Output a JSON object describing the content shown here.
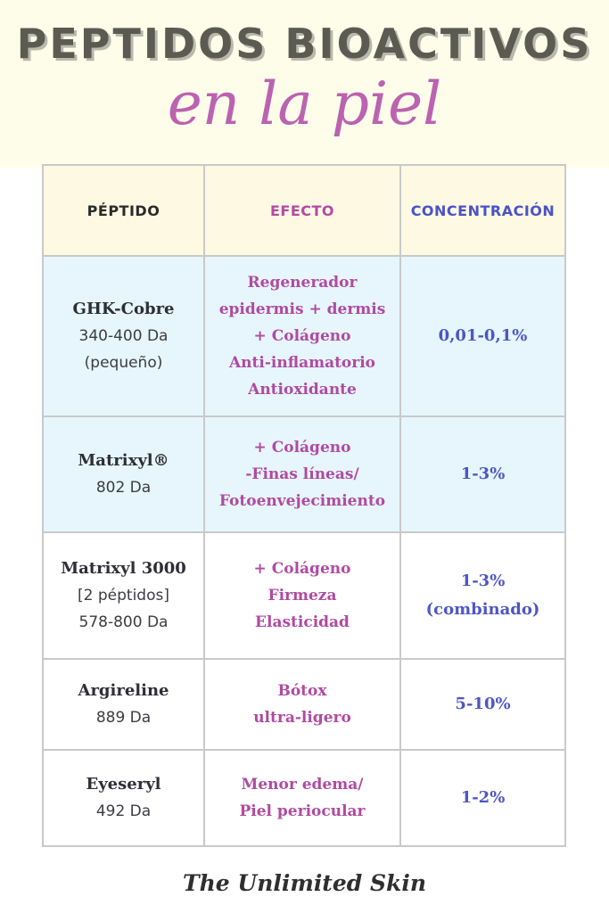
{
  "header": {
    "title": "PEPTIDOS BIOACTIVOS",
    "subtitle": "en la piel"
  },
  "table": {
    "columns": [
      "PÉPTIDO",
      "EFECTO",
      "CONCENTRACIÓN"
    ],
    "rows": [
      {
        "name": "GHK-Cobre",
        "details": [
          "340-400 Da",
          "(pequeño)"
        ],
        "effect": [
          "Regenerador",
          "epidermis + dermis",
          "+ Colágeno",
          "Anti-inflamatorio",
          "Antioxidante"
        ],
        "concentration": [
          "0,01-0,1%"
        ]
      },
      {
        "name": "Matrixyl®",
        "details": [
          "802 Da"
        ],
        "effect": [
          "+ Colágeno",
          "-Finas líneas/",
          "Fotoenvejecimiento"
        ],
        "concentration": [
          "1-3%"
        ]
      },
      {
        "name": "Matrixyl 3000",
        "details": [
          "[2 péptidos]",
          "578-800 Da"
        ],
        "effect": [
          "+ Colágeno",
          "Firmeza",
          "Elasticidad"
        ],
        "concentration": [
          "1-3%",
          "(combinado)"
        ]
      },
      {
        "name": "Argireline",
        "details": [
          "889 Da"
        ],
        "effect": [
          "Bótox",
          "ultra-ligero"
        ],
        "concentration": [
          "5-10%"
        ]
      },
      {
        "name": "Eyeseryl",
        "details": [
          "492 Da"
        ],
        "effect": [
          "Menor edema/",
          "Piel periocular"
        ],
        "concentration": [
          "1-2%"
        ]
      }
    ]
  },
  "footer": {
    "brand": "The Unlimited Skin"
  },
  "colors": {
    "header_band": "#fdfdea",
    "title": "#5b5b52",
    "subtitle": "#bb62b0",
    "effect_text": "#b04aa2",
    "concentration_text": "#4e56c4",
    "highlight_row": "#e6f6fc",
    "header_row": "#fdf9e2",
    "grid": "#c9c9c9"
  }
}
